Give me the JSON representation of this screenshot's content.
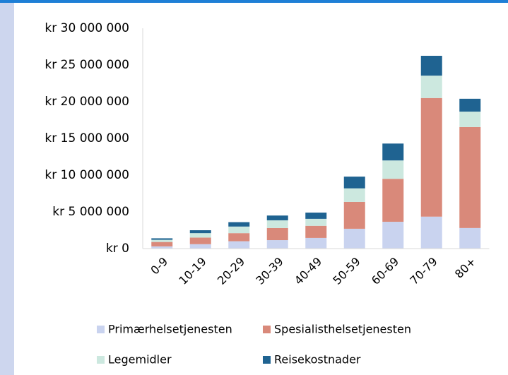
{
  "chart_data": {
    "type": "stacked_bar",
    "categories": [
      "0-9",
      "10-19",
      "20-29",
      "30-39",
      "40-49",
      "50-59",
      "60-69",
      "70-79",
      "80+"
    ],
    "series": [
      {
        "name": "Primærhelsetjenesten",
        "color": "#c9d3ef",
        "values": [
          300000,
          600000,
          1000000,
          1150000,
          1450000,
          2700000,
          3650000,
          4350000,
          2800000
        ]
      },
      {
        "name": "Spesialisthelsetjenesten",
        "color": "#d9897a",
        "values": [
          600000,
          900000,
          1100000,
          1650000,
          1650000,
          3650000,
          5850000,
          16150000,
          13750000
        ]
      },
      {
        "name": "Legemidler",
        "color": "#cce8df",
        "values": [
          300000,
          600000,
          900000,
          1050000,
          950000,
          1850000,
          2500000,
          3050000,
          2100000
        ]
      },
      {
        "name": "Reisekostnader",
        "color": "#1f6391",
        "values": [
          200000,
          400000,
          600000,
          650000,
          850000,
          1600000,
          2300000,
          2700000,
          1750000
        ]
      }
    ],
    "ylim": [
      0,
      30000000
    ],
    "yticks": [
      {
        "value": 0,
        "label": "kr 0"
      },
      {
        "value": 5000000,
        "label": "kr 5 000 000"
      },
      {
        "value": 10000000,
        "label": "kr 10 000 000"
      },
      {
        "value": 15000000,
        "label": "kr 15 000 000"
      },
      {
        "value": 20000000,
        "label": "kr 20 000 000"
      },
      {
        "value": 25000000,
        "label": "kr 25 000 000"
      },
      {
        "value": 30000000,
        "label": "kr 30 000 000"
      }
    ],
    "grid": false
  }
}
